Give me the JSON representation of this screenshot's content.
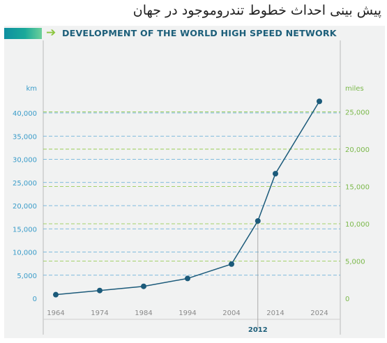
{
  "page": {
    "persian_title": "پیش بینی احداث خطوط تندروموجود در جهان",
    "header_title": "DEVELOPMENT OF THE WORLD HIGH SPEED NETWORK",
    "header_arrow": "➔"
  },
  "colors": {
    "line": "#1b5a7a",
    "km_axis": "#3a9cc9",
    "miles_axis": "#7bb84a",
    "km_grid": "#5aa9d6",
    "miles_grid": "#8cc63f",
    "x_tick": "#8a8a8a",
    "highlight": "#1d5f7a"
  },
  "chart_data": {
    "type": "line",
    "x": [
      1964,
      1974,
      1984,
      1994,
      2004,
      2010,
      2014,
      2024
    ],
    "series": [
      {
        "values": [
          800,
          1700,
          2600,
          4300,
          7400,
          16700,
          26900,
          42500
        ]
      }
    ],
    "x_ticks": [
      "1964",
      "1974",
      "1984",
      "1994",
      "2004",
      "2014",
      "2024"
    ],
    "highlight_label": "2012",
    "y_left": {
      "unit": "km",
      "ylim": [
        0,
        45000
      ],
      "ticks": [
        0,
        5000,
        10000,
        15000,
        20000,
        25000,
        30000,
        35000,
        40000
      ],
      "tick_labels": [
        "0",
        "5,000",
        "10,000",
        "15,000",
        "20,000",
        "25,000",
        "30,000",
        "35,000",
        "40,000"
      ]
    },
    "y_right": {
      "unit": "miles",
      "ticks": [
        0,
        5000,
        10000,
        15000,
        20000,
        25000
      ],
      "tick_labels": [
        "0",
        "5,000",
        "10,000",
        "15,000",
        "20,000",
        "25,000"
      ]
    },
    "grid": true
  }
}
